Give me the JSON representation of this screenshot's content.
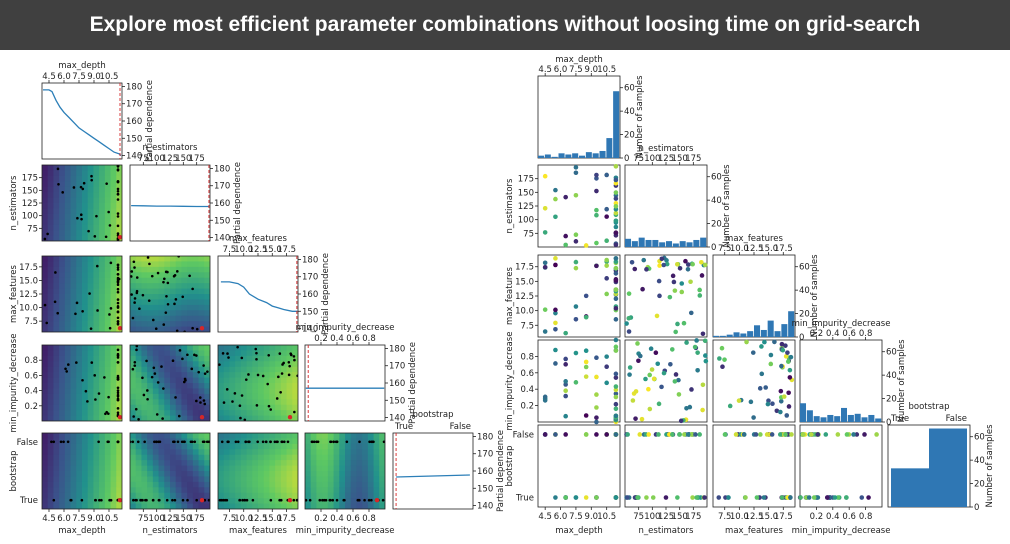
{
  "banner": {
    "title": "Explore most efficient parameter combinations without loosing time on grid-search"
  },
  "chart_data": [
    {
      "type": "partial-dependence-matrix",
      "dimensions": [
        {
          "name": "max_depth",
          "range": [
            3.8,
            11.8
          ],
          "ticks": [
            4.5,
            6.0,
            7.5,
            9.0,
            10.5
          ],
          "tick_labels": [
            "4.5",
            "6.0",
            "7.5",
            "9.0",
            "10.5"
          ]
        },
        {
          "name": "n_estimators",
          "range": [
            50,
            200
          ],
          "ticks": [
            75,
            100,
            125,
            150,
            175
          ],
          "tick_labels": [
            "75",
            "100",
            "125",
            "150",
            "175"
          ]
        },
        {
          "name": "max_features",
          "range": [
            5.5,
            19.5
          ],
          "ticks": [
            7.5,
            10.0,
            12.5,
            15.0,
            17.5
          ],
          "tick_labels": [
            "7.5",
            "10.0",
            "12.5",
            "15.0",
            "17.5"
          ]
        },
        {
          "name": "min_impurity_decrease",
          "range": [
            0,
            1
          ],
          "ticks": [
            0.2,
            0.4,
            0.6,
            0.8
          ],
          "tick_labels": [
            "0.2",
            "0.4",
            "0.6",
            "0.8"
          ]
        },
        {
          "name": "bootstrap",
          "range": [
            -0.15,
            1.15
          ],
          "ticks": [
            0,
            1
          ],
          "tick_labels": [
            "False",
            "True"
          ]
        }
      ],
      "diagonal_ylabel": "Partial dependence",
      "diagonal_ylim": [
        138,
        182
      ],
      "diagonal_yticks": [
        140,
        150,
        160,
        170,
        180
      ],
      "partial_dependence": [
        {
          "x": [
            3.9,
            4.2,
            4.5,
            4.8,
            5.2,
            5.6,
            6.0,
            6.5,
            7.0,
            7.5,
            8.0,
            8.5,
            9.0,
            9.5,
            10.0,
            10.5,
            11.0,
            11.5,
            11.7
          ],
          "y": [
            178,
            178,
            178,
            177,
            172,
            168,
            165,
            162,
            159,
            156,
            154,
            152,
            150,
            148,
            146,
            144,
            142,
            141,
            140
          ]
        },
        {
          "x": [
            52,
            75,
            100,
            125,
            150,
            175,
            198
          ],
          "y": [
            158.5,
            158.4,
            158.2,
            158.2,
            158.1,
            158.0,
            158.0
          ]
        },
        {
          "x": [
            6,
            7.5,
            9,
            10,
            11,
            12.5,
            14,
            15,
            16,
            17,
            18.5,
            19.4
          ],
          "y": [
            167,
            167,
            166,
            164,
            160,
            157,
            155,
            153,
            152,
            151,
            150,
            150
          ]
        },
        {
          "x": [
            0.01,
            0.2,
            0.4,
            0.6,
            0.8,
            0.99
          ],
          "y": [
            157,
            157,
            157,
            157,
            157,
            157
          ]
        },
        {
          "x": [
            -0.1,
            0.2,
            0.5,
            0.8,
            1.1
          ],
          "y": [
            156.5,
            156.8,
            157.1,
            157.4,
            157.7
          ]
        }
      ],
      "minimum_marker": {
        "color": "#d62728",
        "style": "dashed"
      },
      "colormap": "viridis"
    },
    {
      "type": "evaluations-matrix",
      "dimensions": [
        "max_depth",
        "n_estimators",
        "max_features",
        "min_impurity_decrease",
        "bootstrap"
      ],
      "diagonal_ylabel": "Number of samples",
      "diagonal_ylim": [
        0,
        70
      ],
      "diagonal_yticks": [
        0,
        20,
        40,
        60
      ],
      "histograms": [
        {
          "edges": [
            3.8,
            4.47,
            5.13,
            5.8,
            6.47,
            7.13,
            7.8,
            8.47,
            9.13,
            9.8,
            10.47,
            11.13,
            11.8
          ],
          "counts": [
            2,
            3,
            1,
            4,
            3,
            4,
            2,
            5,
            4,
            6,
            17,
            57
          ]
        },
        {
          "edges": [
            50,
            62.5,
            75,
            87.5,
            100,
            112.5,
            125,
            137.5,
            150,
            162.5,
            175,
            187.5,
            200
          ],
          "counts": [
            7,
            5,
            8,
            6,
            6,
            4,
            5,
            3,
            5,
            4,
            6,
            8
          ]
        },
        {
          "edges": [
            5.5,
            6.67,
            7.83,
            9,
            10.17,
            11.33,
            12.5,
            13.67,
            14.83,
            16,
            17.17,
            18.33,
            19.5
          ],
          "counts": [
            1,
            1,
            2,
            4,
            3,
            5,
            10,
            6,
            14,
            5,
            11,
            22
          ]
        },
        {
          "edges": [
            0,
            0.083,
            0.167,
            0.25,
            0.333,
            0.417,
            0.5,
            0.583,
            0.667,
            0.75,
            0.833,
            0.917,
            1.0
          ],
          "counts": [
            16,
            10,
            5,
            4,
            6,
            5,
            12,
            6,
            7,
            4,
            6,
            3
          ]
        },
        {
          "categories": [
            "True",
            "False"
          ],
          "counts": [
            33,
            67
          ]
        }
      ],
      "colormap": "viridis"
    }
  ]
}
